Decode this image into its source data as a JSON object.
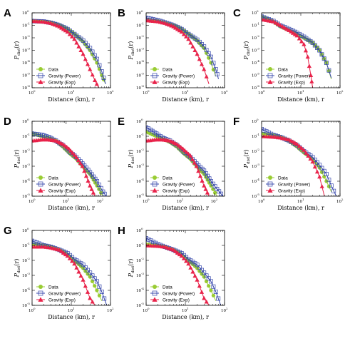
{
  "colors": {
    "data": "#99cc33",
    "power": "#3344aa",
    "exp": "#e8234a"
  },
  "shared": {
    "xlabel": "Distance (km), r",
    "ylabel_main": "P",
    "ylabel_sub": "dist",
    "ylabel_arg": "(r)",
    "legend": [
      "Data",
      "Gravity (Power)",
      "Gravity (Exp)"
    ],
    "x_log_range": [
      0,
      2
    ],
    "y_log_range": [
      -6,
      0
    ]
  },
  "chart_data": [
    {
      "type": "line",
      "panel": "A",
      "x_scale": "log",
      "y_scale": "log",
      "xlim": [
        1,
        100
      ],
      "ylim": [
        1e-06,
        1
      ],
      "xticks": [
        "10^0",
        "10^1",
        "10^2"
      ],
      "yticks": [
        "10^-6",
        "10^-5",
        "10^-4",
        "10^-3",
        "10^-2",
        "10^-1",
        "10^0"
      ],
      "series": [
        {
          "name": "Data",
          "x": [
            1,
            2,
            3,
            5,
            8,
            12,
            20,
            30,
            45,
            60,
            75
          ],
          "y": [
            0.22,
            0.2,
            0.17,
            0.1,
            0.05,
            0.02,
            0.005,
            0.001,
            0.0001,
            1e-05,
            2e-06
          ]
        },
        {
          "name": "Gravity (Power)",
          "x": [
            1,
            2,
            3,
            5,
            8,
            12,
            20,
            30,
            45,
            60,
            75
          ],
          "y": [
            0.22,
            0.2,
            0.16,
            0.1,
            0.05,
            0.02,
            0.006,
            0.0015,
            0.0002,
            2e-05,
            2e-06
          ]
        },
        {
          "name": "Gravity (Exp)",
          "x": [
            1,
            2,
            3,
            5,
            8,
            12,
            20,
            30,
            40,
            50
          ],
          "y": [
            0.22,
            0.19,
            0.15,
            0.08,
            0.03,
            0.008,
            0.0005,
            3e-05,
            4e-06,
            1e-06
          ]
        }
      ],
      "legend_position": "bottom-left"
    },
    {
      "type": "line",
      "panel": "B",
      "x_scale": "log",
      "y_scale": "log",
      "xlim": [
        1,
        100
      ],
      "ylim": [
        1e-06,
        1
      ],
      "xticks": [
        "10^0",
        "10^1",
        "10^2"
      ],
      "yticks": [
        "10^-6",
        "10^-5",
        "10^-4",
        "10^-3",
        "10^-2",
        "10^-1",
        "10^0"
      ],
      "series": [
        {
          "name": "Data",
          "x": [
            1,
            2,
            3,
            5,
            8,
            12,
            20,
            30,
            45,
            60
          ],
          "y": [
            0.3,
            0.22,
            0.16,
            0.1,
            0.05,
            0.02,
            0.006,
            0.0015,
            0.0001,
            8e-06
          ]
        },
        {
          "name": "Gravity (Power)",
          "x": [
            1,
            2,
            3,
            5,
            8,
            12,
            20,
            30,
            45,
            60,
            70
          ],
          "y": [
            0.4,
            0.25,
            0.17,
            0.1,
            0.05,
            0.02,
            0.007,
            0.002,
            0.0003,
            3e-05,
            5e-06
          ]
        },
        {
          "name": "Gravity (Exp)",
          "x": [
            1,
            2,
            3,
            5,
            8,
            12,
            20,
            30,
            40
          ],
          "y": [
            0.25,
            0.2,
            0.15,
            0.08,
            0.03,
            0.008,
            0.0005,
            3e-05,
            2e-06
          ]
        }
      ],
      "legend_position": "bottom-left"
    },
    {
      "type": "line",
      "panel": "C",
      "x_scale": "log",
      "y_scale": "log",
      "xlim": [
        1,
        100
      ],
      "ylim": [
        1e-06,
        1
      ],
      "xticks": [
        "10^0",
        "10^1",
        "10^2"
      ],
      "yticks": [
        "10^-6",
        "10^-5",
        "10^-4",
        "10^-3",
        "10^-2",
        "10^-1",
        "10^0"
      ],
      "series": [
        {
          "name": "Data",
          "x": [
            1,
            2,
            3,
            5,
            8,
            12,
            20,
            30,
            45,
            60
          ],
          "y": [
            0.5,
            0.2,
            0.08,
            0.04,
            0.02,
            0.01,
            0.004,
            0.001,
            0.0001,
            5e-06
          ]
        },
        {
          "name": "Gravity (Power)",
          "x": [
            1,
            2,
            3,
            5,
            8,
            12,
            20,
            30,
            45,
            60
          ],
          "y": [
            0.5,
            0.22,
            0.1,
            0.05,
            0.025,
            0.012,
            0.004,
            0.001,
            0.0001,
            6e-06
          ]
        },
        {
          "name": "Gravity (Exp)",
          "x": [
            1,
            2,
            3,
            5,
            8,
            12,
            15,
            18,
            20
          ],
          "y": [
            0.3,
            0.2,
            0.1,
            0.04,
            0.015,
            0.003,
            0.0003,
            1e-05,
            1e-06
          ]
        }
      ],
      "legend_position": "bottom-left"
    },
    {
      "type": "line",
      "panel": "D",
      "x_scale": "log",
      "y_scale": "log",
      "xlim": [
        1,
        200
      ],
      "ylim": [
        1e-05,
        1
      ],
      "xticks": [
        "10^0",
        "10^1",
        "10^2"
      ],
      "yticks": [
        "10^-5",
        "10^-4",
        "10^-3",
        "10^-2",
        "10^-1",
        "10^0"
      ],
      "series": [
        {
          "name": "Data",
          "x": [
            1,
            2,
            3,
            5,
            8,
            12,
            20,
            30,
            50,
            80,
            120
          ],
          "y": [
            0.15,
            0.1,
            0.08,
            0.05,
            0.02,
            0.008,
            0.003,
            0.001,
            0.0003,
            5e-05,
            1e-05
          ]
        },
        {
          "name": "Gravity (Power)",
          "x": [
            1,
            2,
            3,
            5,
            8,
            12,
            20,
            30,
            50,
            80,
            120,
            150
          ],
          "y": [
            0.15,
            0.12,
            0.09,
            0.05,
            0.025,
            0.01,
            0.004,
            0.0015,
            0.0004,
            0.0001,
            2e-05,
            1e-05
          ]
        },
        {
          "name": "Gravity (Exp)",
          "x": [
            1,
            2,
            3,
            5,
            8,
            12,
            20,
            30,
            50,
            70
          ],
          "y": [
            0.05,
            0.06,
            0.06,
            0.05,
            0.03,
            0.015,
            0.004,
            0.001,
            5e-05,
            1e-05
          ]
        }
      ],
      "legend_position": "bottom-left"
    },
    {
      "type": "line",
      "panel": "E",
      "x_scale": "log",
      "y_scale": "log",
      "xlim": [
        1,
        200
      ],
      "ylim": [
        1e-05,
        1
      ],
      "xticks": [
        "10^0",
        "10^1",
        "10^2"
      ],
      "yticks": [
        "10^-5",
        "10^-4",
        "10^-3",
        "10^-2",
        "10^-1",
        "10^0"
      ],
      "series": [
        {
          "name": "Data",
          "x": [
            1,
            2,
            3,
            5,
            8,
            12,
            20,
            30,
            50,
            80,
            120
          ],
          "y": [
            0.2,
            0.1,
            0.07,
            0.04,
            0.02,
            0.008,
            0.003,
            0.001,
            0.0003,
            5e-05,
            1e-05
          ]
        },
        {
          "name": "Gravity (Power)",
          "x": [
            1,
            2,
            3,
            5,
            8,
            12,
            20,
            30,
            50,
            80,
            120,
            180
          ],
          "y": [
            0.4,
            0.15,
            0.08,
            0.05,
            0.025,
            0.01,
            0.004,
            0.0015,
            0.0005,
            0.0001,
            3e-05,
            1e-05
          ]
        },
        {
          "name": "Gravity (Exp)",
          "x": [
            1,
            2,
            3,
            5,
            8,
            12,
            20,
            30,
            50,
            70
          ],
          "y": [
            0.05,
            0.06,
            0.06,
            0.05,
            0.03,
            0.015,
            0.005,
            0.001,
            5e-05,
            1e-05
          ]
        }
      ],
      "legend_position": "bottom-left"
    },
    {
      "type": "line",
      "panel": "F",
      "x_scale": "log",
      "y_scale": "log",
      "xlim": [
        1,
        100
      ],
      "ylim": [
        1e-05,
        1
      ],
      "xticks": [
        "10^0",
        "10^1",
        "10^2"
      ],
      "yticks": [
        "10^-5",
        "10^-4",
        "10^-3",
        "10^-2",
        "10^-1",
        "10^0"
      ],
      "series": [
        {
          "name": "Data",
          "x": [
            1,
            2,
            3,
            5,
            8,
            12,
            20,
            30,
            45,
            60
          ],
          "y": [
            0.15,
            0.12,
            0.09,
            0.05,
            0.02,
            0.008,
            0.003,
            0.0008,
            0.0001,
            2e-05
          ]
        },
        {
          "name": "Gravity (Power)",
          "x": [
            1,
            2,
            3,
            5,
            8,
            12,
            20,
            30,
            45,
            60,
            80
          ],
          "y": [
            0.3,
            0.12,
            0.09,
            0.05,
            0.025,
            0.01,
            0.004,
            0.0012,
            0.0003,
            5e-05,
            1e-05
          ]
        },
        {
          "name": "Gravity (Exp)",
          "x": [
            1,
            2,
            3,
            5,
            8,
            12,
            20,
            30,
            40
          ],
          "y": [
            0.1,
            0.09,
            0.08,
            0.06,
            0.03,
            0.012,
            0.002,
            0.0002,
            1e-05
          ]
        }
      ],
      "legend_position": "bottom-left"
    },
    {
      "type": "line",
      "panel": "G",
      "x_scale": "log",
      "y_scale": "log",
      "xlim": [
        1,
        100
      ],
      "ylim": [
        1e-05,
        1
      ],
      "xticks": [
        "10^0",
        "10^1",
        "10^2"
      ],
      "yticks": [
        "10^-5",
        "10^-4",
        "10^-3",
        "10^-2",
        "10^-1",
        "10^0"
      ],
      "series": [
        {
          "name": "Data",
          "x": [
            1,
            2,
            3,
            5,
            8,
            12,
            20,
            30,
            45,
            60
          ],
          "y": [
            0.12,
            0.1,
            0.08,
            0.05,
            0.025,
            0.01,
            0.003,
            0.0008,
            0.0001,
            2e-05
          ]
        },
        {
          "name": "Gravity (Power)",
          "x": [
            1,
            2,
            3,
            5,
            8,
            12,
            20,
            30,
            45,
            60,
            80
          ],
          "y": [
            0.2,
            0.1,
            0.08,
            0.05,
            0.03,
            0.012,
            0.005,
            0.0015,
            0.0004,
            8e-05,
            1e-05
          ]
        },
        {
          "name": "Gravity (Exp)",
          "x": [
            1,
            2,
            3,
            5,
            8,
            12,
            20,
            30,
            40
          ],
          "y": [
            0.08,
            0.08,
            0.07,
            0.05,
            0.02,
            0.006,
            0.0005,
            3e-05,
            1e-05
          ]
        }
      ],
      "legend_position": "bottom-left"
    },
    {
      "type": "line",
      "panel": "H",
      "x_scale": "log",
      "y_scale": "log",
      "xlim": [
        1,
        100
      ],
      "ylim": [
        1e-05,
        1
      ],
      "xticks": [
        "10^0",
        "10^1",
        "10^2"
      ],
      "yticks": [
        "10^-5",
        "10^-4",
        "10^-3",
        "10^-2",
        "10^-1",
        "10^0"
      ],
      "series": [
        {
          "name": "Data",
          "x": [
            1,
            2,
            3,
            5,
            8,
            12,
            20,
            30,
            45,
            60
          ],
          "y": [
            0.12,
            0.1,
            0.08,
            0.05,
            0.025,
            0.01,
            0.003,
            0.0008,
            0.0001,
            2e-05
          ]
        },
        {
          "name": "Gravity (Power)",
          "x": [
            1,
            2,
            3,
            5,
            8,
            12,
            20,
            30,
            45,
            60,
            80
          ],
          "y": [
            0.3,
            0.12,
            0.08,
            0.05,
            0.03,
            0.012,
            0.005,
            0.0015,
            0.0004,
            8e-05,
            1e-05
          ]
        },
        {
          "name": "Gravity (Exp)",
          "x": [
            1,
            2,
            3,
            5,
            8,
            12,
            20,
            30,
            40
          ],
          "y": [
            0.1,
            0.09,
            0.08,
            0.05,
            0.02,
            0.006,
            0.0005,
            3e-05,
            1e-05
          ]
        }
      ],
      "legend_position": "bottom-left"
    }
  ]
}
